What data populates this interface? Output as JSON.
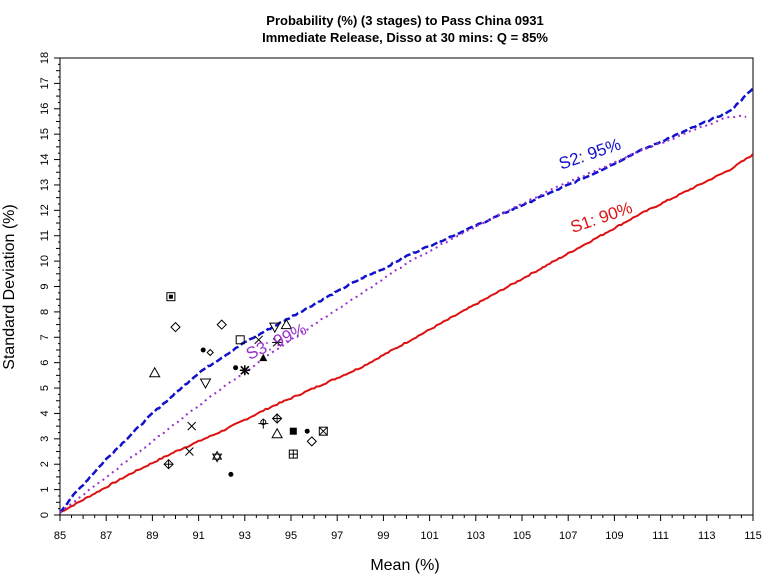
{
  "chart_data": {
    "type": "line",
    "title": "Probability (%) (3 stages) to Pass China 0931",
    "subtitle": "Immediate Release, Disso at 30 mins: Q = 85%",
    "xlabel": "Mean (%)",
    "ylabel": "Standard Deviation (%)",
    "xlim": [
      85,
      115
    ],
    "ylim": [
      0,
      18
    ],
    "x_ticks": [
      85,
      87,
      89,
      91,
      93,
      95,
      97,
      99,
      101,
      103,
      105,
      107,
      109,
      111,
      113,
      115
    ],
    "y_ticks": [
      0,
      1,
      2,
      3,
      4,
      5,
      6,
      7,
      8,
      9,
      10,
      11,
      12,
      13,
      14,
      15,
      16,
      17,
      18
    ],
    "grid": false,
    "legend": "none",
    "series": [
      {
        "label": "S1: 90%",
        "color": "#dd1111",
        "style": "solid",
        "x": [
          85,
          86,
          88,
          90,
          92,
          94,
          96,
          98,
          100,
          102,
          104,
          106,
          108,
          110,
          112,
          114,
          115
        ],
        "y": [
          0.1,
          0.6,
          1.6,
          2.5,
          3.3,
          4.2,
          5.0,
          5.8,
          6.8,
          7.8,
          8.8,
          9.8,
          10.8,
          11.8,
          12.7,
          13.6,
          14.2
        ]
      },
      {
        "label": "S2: 95%",
        "color": "#1111cc",
        "style": "dashed",
        "x": [
          85,
          85.5,
          86,
          87,
          88,
          89,
          90,
          91,
          92,
          93,
          94,
          95,
          96,
          97,
          98,
          99,
          100,
          102,
          104,
          106,
          108,
          110,
          112,
          114,
          115
        ],
        "y": [
          0.1,
          0.7,
          1.2,
          2.2,
          3.1,
          4.0,
          4.8,
          5.6,
          6.2,
          6.8,
          7.3,
          7.8,
          8.3,
          8.8,
          9.3,
          9.7,
          10.2,
          11.0,
          11.8,
          12.6,
          13.4,
          14.3,
          15.1,
          15.9,
          16.8
        ]
      },
      {
        "label": "S3: 99%",
        "color": "#9933cc",
        "style": "dotted",
        "x": [
          85,
          86,
          87,
          88,
          89,
          90,
          91,
          92,
          93,
          94,
          95,
          96,
          97,
          98,
          99,
          100,
          102,
          104,
          106,
          108,
          110,
          112,
          114,
          114.7
        ],
        "y": [
          0.1,
          0.8,
          1.5,
          2.2,
          2.9,
          3.6,
          4.3,
          5.0,
          5.6,
          6.3,
          6.9,
          7.5,
          8.1,
          8.7,
          9.3,
          9.9,
          10.9,
          11.8,
          12.7,
          13.5,
          14.3,
          15.0,
          15.7,
          15.7
        ]
      }
    ],
    "curve_labels": [
      {
        "text": "S1: 90%",
        "x": 107.2,
        "y": 11.1,
        "angle": -19,
        "color": "#dd1111"
      },
      {
        "text": "S2: 95%",
        "x": 106.7,
        "y": 13.6,
        "angle": -19,
        "color": "#1111cc"
      },
      {
        "text": "S3: 99%",
        "x": 93.2,
        "y": 6.1,
        "angle": -25,
        "color": "#9933cc"
      }
    ],
    "points": [
      {
        "x": 89.8,
        "y": 8.6,
        "marker": "boxdot"
      },
      {
        "x": 90.0,
        "y": 7.4,
        "marker": "diamond"
      },
      {
        "x": 92.0,
        "y": 7.5,
        "marker": "diamond"
      },
      {
        "x": 92.8,
        "y": 6.9,
        "marker": "square"
      },
      {
        "x": 93.6,
        "y": 6.9,
        "marker": "x"
      },
      {
        "x": 94.3,
        "y": 7.4,
        "marker": "tri-down"
      },
      {
        "x": 94.8,
        "y": 7.5,
        "marker": "triangle"
      },
      {
        "x": 94.4,
        "y": 6.8,
        "marker": "star"
      },
      {
        "x": 91.2,
        "y": 6.5,
        "marker": "dot"
      },
      {
        "x": 91.5,
        "y": 6.4,
        "marker": "diamond-small"
      },
      {
        "x": 89.1,
        "y": 5.6,
        "marker": "triangle"
      },
      {
        "x": 91.3,
        "y": 5.2,
        "marker": "tri-down"
      },
      {
        "x": 92.6,
        "y": 5.8,
        "marker": "dot"
      },
      {
        "x": 93.0,
        "y": 5.7,
        "marker": "asterisk"
      },
      {
        "x": 93.8,
        "y": 6.2,
        "marker": "tri-filled"
      },
      {
        "x": 90.7,
        "y": 3.5,
        "marker": "x"
      },
      {
        "x": 90.6,
        "y": 2.5,
        "marker": "x"
      },
      {
        "x": 89.7,
        "y": 2.0,
        "marker": "diamond-plus"
      },
      {
        "x": 91.8,
        "y": 2.3,
        "marker": "star6"
      },
      {
        "x": 92.4,
        "y": 1.6,
        "marker": "dot"
      },
      {
        "x": 93.8,
        "y": 3.6,
        "marker": "plus-circle"
      },
      {
        "x": 94.4,
        "y": 3.8,
        "marker": "diamond-plus"
      },
      {
        "x": 94.4,
        "y": 3.2,
        "marker": "triangle"
      },
      {
        "x": 95.1,
        "y": 3.3,
        "marker": "square-filled"
      },
      {
        "x": 95.1,
        "y": 2.4,
        "marker": "square-plus"
      },
      {
        "x": 95.7,
        "y": 3.3,
        "marker": "dot"
      },
      {
        "x": 95.9,
        "y": 2.9,
        "marker": "diamond"
      },
      {
        "x": 96.4,
        "y": 3.3,
        "marker": "square-x"
      }
    ]
  }
}
